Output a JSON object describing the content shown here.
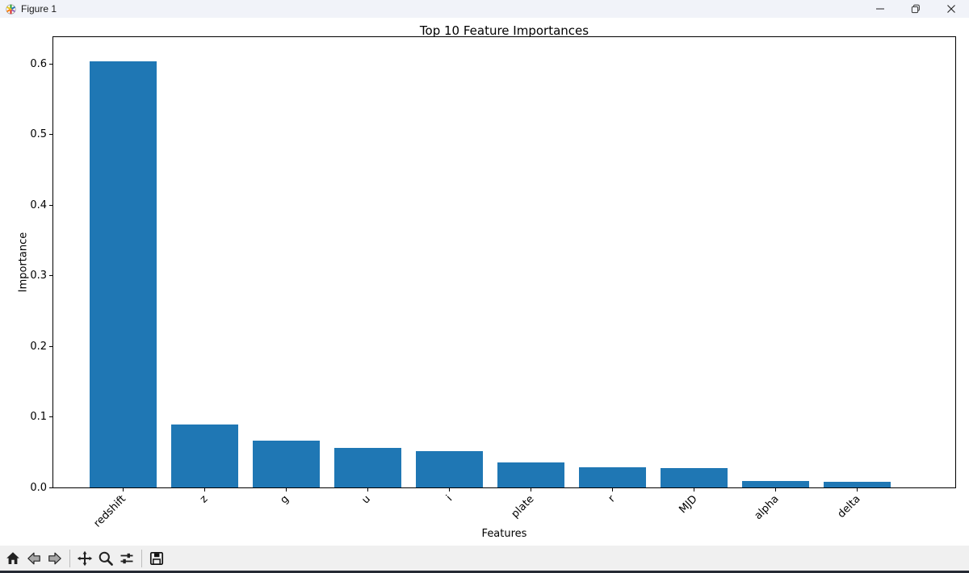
{
  "window": {
    "title": "Figure 1",
    "controls": [
      {
        "name": "minimize"
      },
      {
        "name": "restore"
      },
      {
        "name": "close"
      }
    ]
  },
  "toolbar": {
    "buttons": [
      {
        "name": "home"
      },
      {
        "name": "back"
      },
      {
        "name": "forward"
      },
      {
        "name": "pan"
      },
      {
        "name": "zoom"
      },
      {
        "name": "configure-subplots"
      },
      {
        "name": "save"
      }
    ]
  },
  "chart_data": {
    "type": "bar",
    "title": "Top 10 Feature Importances",
    "xlabel": "Features",
    "ylabel": "Importance",
    "categories": [
      "redshift",
      "z",
      "g",
      "u",
      "i",
      "plate",
      "r",
      "MJD",
      "alpha",
      "delta"
    ],
    "values": [
      0.604,
      0.089,
      0.066,
      0.056,
      0.051,
      0.036,
      0.029,
      0.027,
      0.009,
      0.008
    ],
    "yticks": [
      0.0,
      0.1,
      0.2,
      0.3,
      0.4,
      0.5,
      0.6
    ],
    "ytick_labels": [
      "0.0",
      "0.1",
      "0.2",
      "0.3",
      "0.4",
      "0.5",
      "0.6"
    ],
    "ylim": [
      0,
      0.638
    ],
    "bar_color": "#1f77b4",
    "grid": false,
    "legend": null,
    "tick_label_rotation": 45
  }
}
